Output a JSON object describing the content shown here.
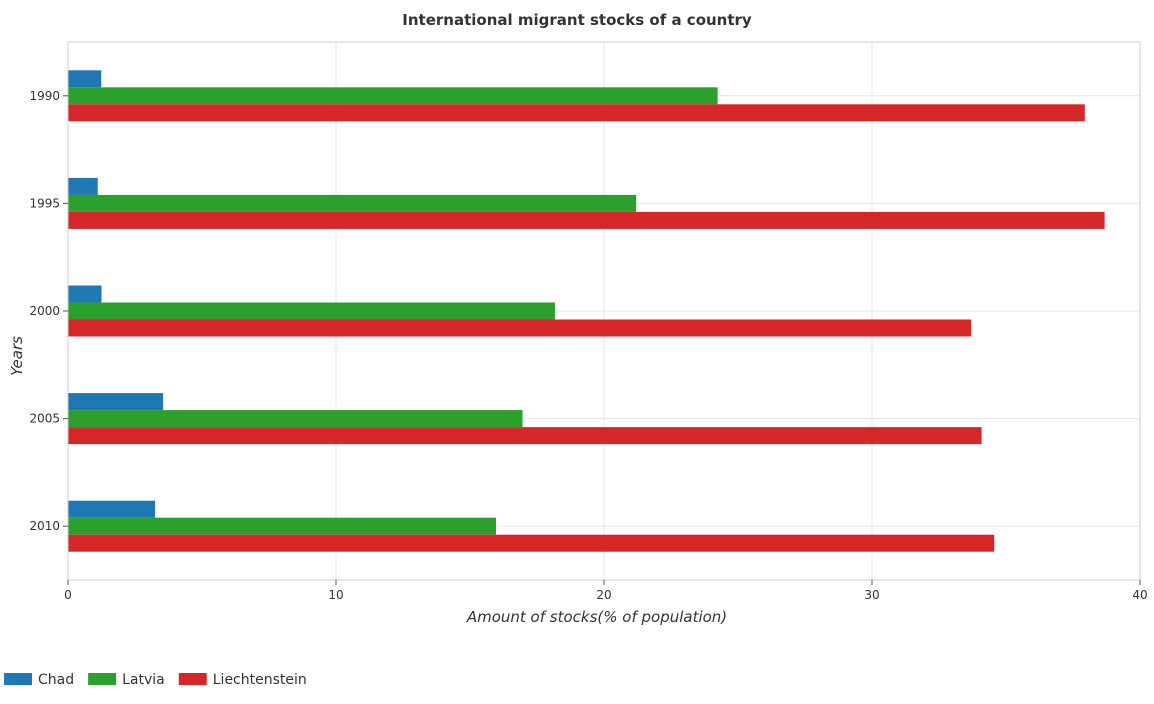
{
  "chart_data": {
    "type": "bar",
    "orientation": "horizontal",
    "title": "International migrant stocks of a country",
    "xlabel": "Amount of stocks(% of population)",
    "ylabel": "Years",
    "categories": [
      "1990",
      "1995",
      "2000",
      "2005",
      "2010"
    ],
    "series": [
      {
        "name": "Chad",
        "color": "#1f77b4",
        "values": [
          1.24,
          1.11,
          1.25,
          3.55,
          3.25
        ]
      },
      {
        "name": "Latvia",
        "color": "#2ca02c",
        "values": [
          24.24,
          21.2,
          18.17,
          16.96,
          15.97
        ]
      },
      {
        "name": "Liechtenstein",
        "color": "#d62728",
        "values": [
          37.94,
          38.68,
          33.7,
          34.09,
          34.56
        ]
      }
    ],
    "xlim": [
      0,
      40
    ],
    "xticks": [
      0,
      10,
      20,
      30,
      40
    ],
    "grid": true,
    "legend_position": "bottom-left"
  }
}
